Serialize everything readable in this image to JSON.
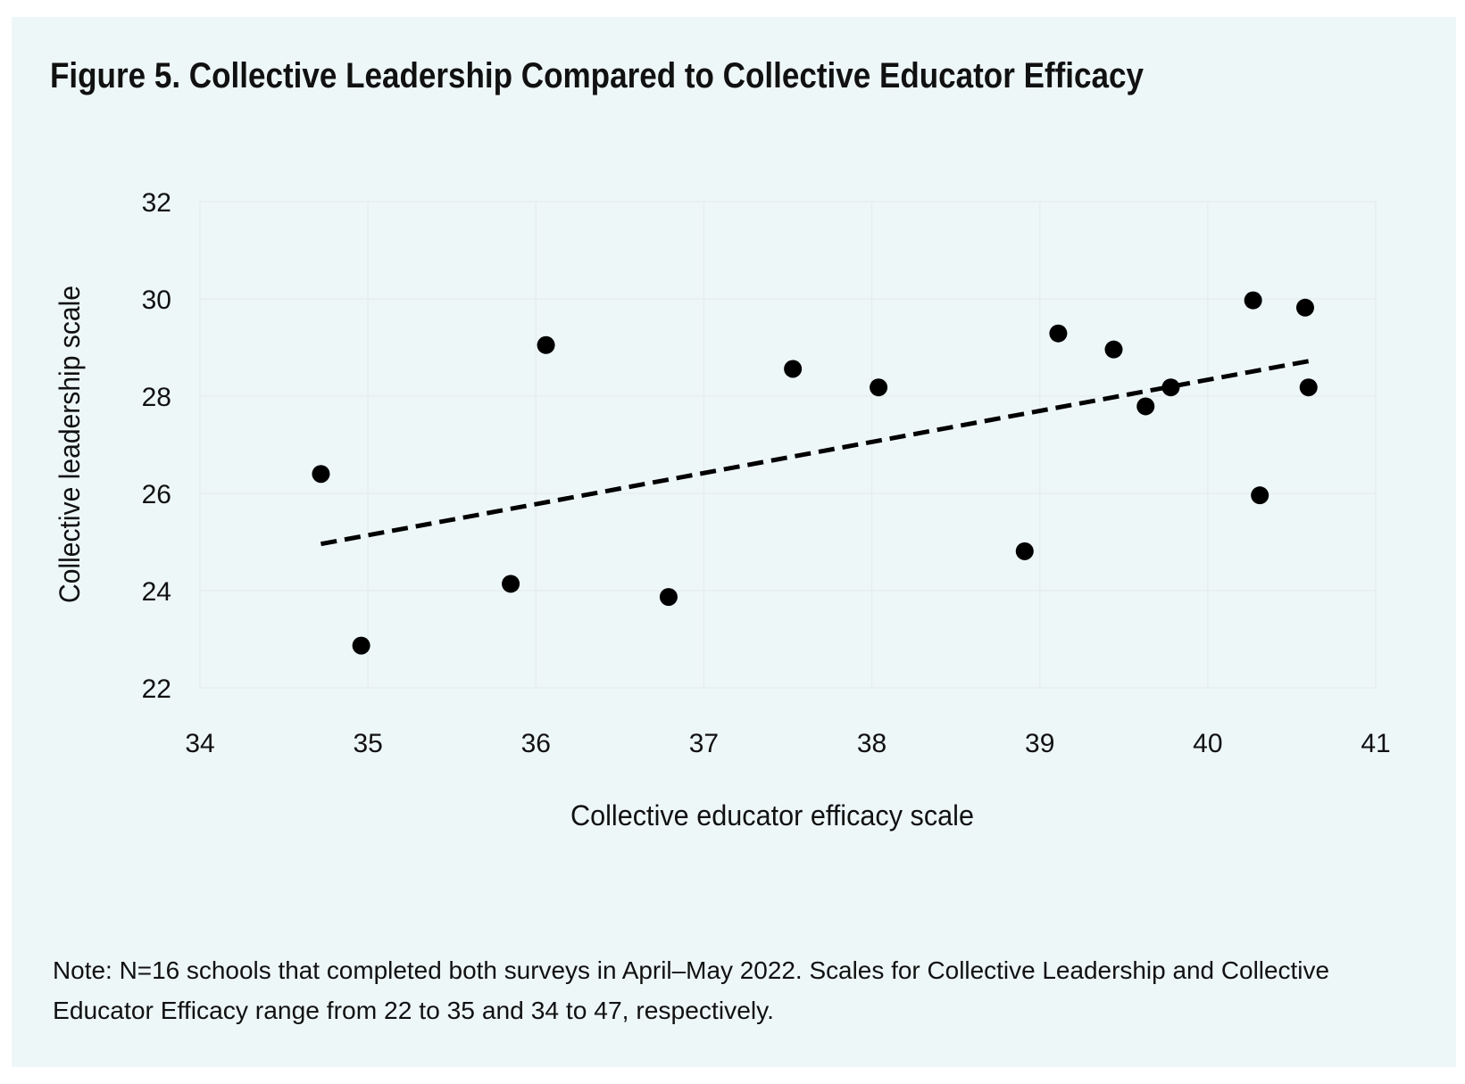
{
  "chart_data": {
    "type": "scatter",
    "title": "Figure 5. Collective Leadership Compared to Collective Educator Efficacy",
    "xlabel": "Collective educator efficacy scale",
    "ylabel": "Collective leadership scale",
    "xlim": [
      34,
      41
    ],
    "ylim": [
      22,
      32
    ],
    "xticks": [
      34,
      35,
      36,
      37,
      38,
      39,
      40,
      41
    ],
    "yticks": [
      22,
      24,
      26,
      28,
      30,
      32
    ],
    "grid": true,
    "point_color": "#000000",
    "background_color": "#eef7f8",
    "points": [
      {
        "x": 34.72,
        "y": 26.4
      },
      {
        "x": 34.96,
        "y": 22.87
      },
      {
        "x": 35.85,
        "y": 24.14
      },
      {
        "x": 36.06,
        "y": 29.05
      },
      {
        "x": 36.79,
        "y": 23.87
      },
      {
        "x": 37.53,
        "y": 28.56
      },
      {
        "x": 38.04,
        "y": 28.18
      },
      {
        "x": 38.91,
        "y": 24.81
      },
      {
        "x": 39.11,
        "y": 29.29
      },
      {
        "x": 39.44,
        "y": 28.96
      },
      {
        "x": 39.63,
        "y": 27.79
      },
      {
        "x": 39.78,
        "y": 28.18
      },
      {
        "x": 40.27,
        "y": 29.97
      },
      {
        "x": 40.31,
        "y": 25.96
      },
      {
        "x": 40.58,
        "y": 29.82
      },
      {
        "x": 40.6,
        "y": 28.18
      }
    ],
    "trendline": {
      "style": "dashed",
      "x": [
        34.72,
        40.6
      ],
      "y": [
        24.96,
        28.72
      ]
    },
    "notes": [
      "Note: N=16 schools that completed both surveys in April–May 2022. Scales for Collective Leadership and Collective",
      "Educator Efficacy range from 22 to 35 and 34 to 47, respectively."
    ]
  }
}
